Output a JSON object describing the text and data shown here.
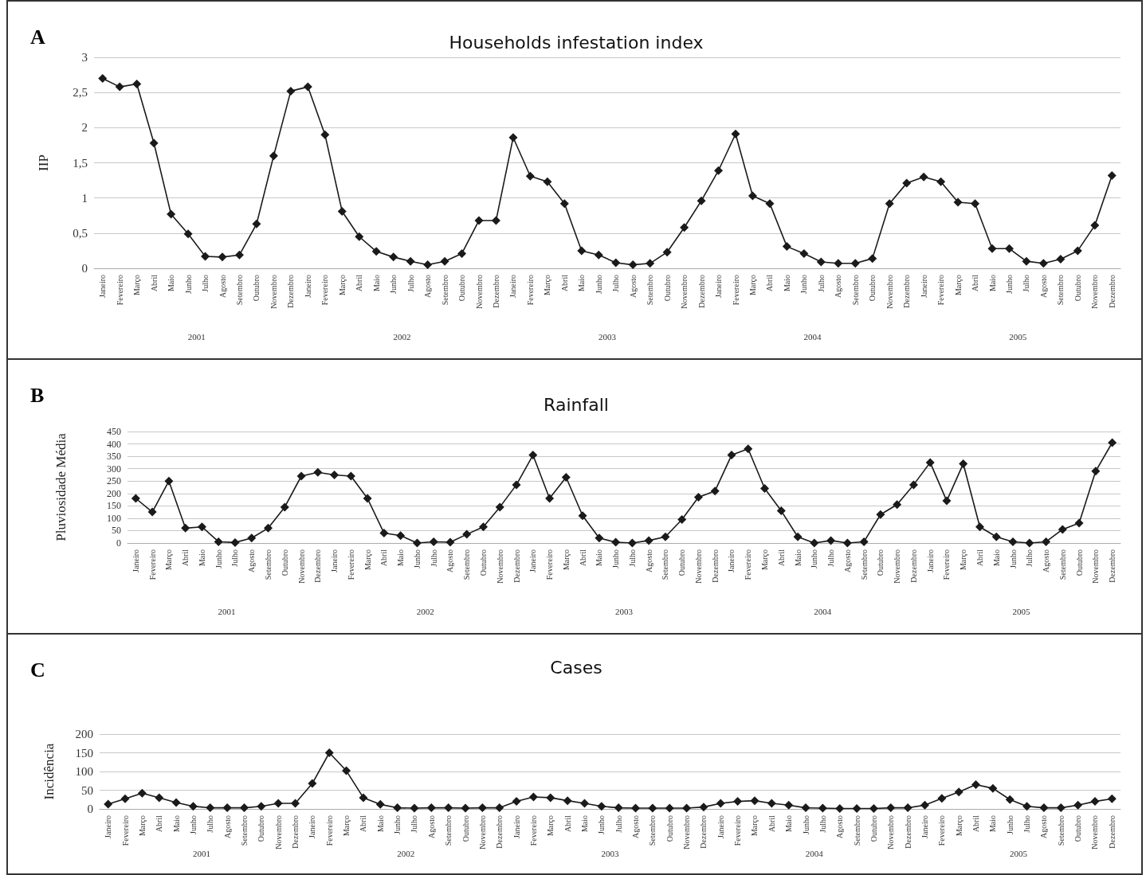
{
  "chart_data": [
    {
      "type": "line",
      "title": "Households infestation index",
      "ylabel": "IIP",
      "annotations": [
        "A",
        "2001",
        "2002",
        "2003",
        "2004",
        "2005"
      ],
      "categories": [
        "Janeiro",
        "Fevereiro",
        "Março",
        "Abril",
        "Maio",
        "Junho",
        "Julho",
        "Agosto",
        "Setembro",
        "Outubro",
        "Novembro",
        "Dezembro",
        "Janeiro",
        "Fevereiro",
        "Março",
        "Abril",
        "Maio",
        "Junho",
        "Julho",
        "Agosto",
        "Setembro",
        "Outubro",
        "Novembro",
        "Dezembro",
        "Janeiro",
        "Fevereiro",
        "Março",
        "Abril",
        "Maio",
        "Junho",
        "Julho",
        "Agosto",
        "Setembro",
        "Outubro",
        "Novembro",
        "Dezembro",
        "Janeiro",
        "Fevereiro",
        "Março",
        "Abril",
        "Maio",
        "Junho",
        "Julho",
        "Agosto",
        "Setembro",
        "Outubro",
        "Novembro",
        "Dezembro",
        "Janeiro",
        "Fevereiro",
        "Março",
        "Abril",
        "Maio",
        "Junho",
        "Julho",
        "Agosto",
        "Setembro",
        "Outubro",
        "Novembro",
        "Dezembro"
      ],
      "series": [
        {
          "color": "#1a1a1a",
          "values": [
            2.7,
            2.58,
            2.62,
            1.78,
            0.77,
            0.49,
            0.17,
            0.16,
            0.19,
            0.63,
            1.6,
            2.52,
            2.58,
            1.9,
            0.81,
            0.45,
            0.24,
            0.16,
            0.1,
            0.05,
            0.1,
            0.21,
            0.68,
            0.68,
            1.86,
            1.31,
            1.23,
            0.92,
            0.25,
            0.19,
            0.08,
            0.05,
            0.07,
            0.23,
            0.58,
            0.96,
            1.39,
            1.91,
            1.03,
            0.92,
            0.31,
            0.21,
            0.09,
            0.07,
            0.07,
            0.14,
            0.92,
            1.21,
            1.3,
            1.23,
            0.94,
            0.92,
            0.28,
            0.28,
            0.1,
            0.07,
            0.13,
            0.25,
            0.61,
            1.32
          ]
        }
      ],
      "ylim": [
        0,
        3
      ],
      "yticks": [
        0,
        {
          "value": 0.5,
          "label": "0,5"
        },
        1,
        {
          "value": 1.5,
          "label": "1,5"
        },
        2,
        {
          "value": 2.5,
          "label": "2,5"
        },
        3
      ],
      "grid": "y",
      "marker": "diamond",
      "line_style": "solid"
    },
    {
      "type": "line",
      "title": "Rainfall",
      "ylabel": "Pluviosidade Média",
      "annotations": [
        "B",
        "2001",
        "2002",
        "2003",
        "2004",
        "2005"
      ],
      "categories": [
        "Janeiro",
        "Fevereiro",
        "Março",
        "Abril",
        "Maio",
        "Junho",
        "Julho",
        "Agosto",
        "Setembro",
        "Outubro",
        "Novembro",
        "Dezembro",
        "Janeiro",
        "Fevereiro",
        "Março",
        "Abril",
        "Maio",
        "Junho",
        "Julho",
        "Agosto",
        "Setembro",
        "Outubro",
        "Novembro",
        "Dezembro",
        "Janeiro",
        "Fevereiro",
        "Março",
        "Abril",
        "Maio",
        "Junho",
        "Julho",
        "Agosto",
        "Setembro",
        "Outubro",
        "Novembro",
        "Dezembro",
        "Janeiro",
        "Fevereiro",
        "Março",
        "Abril",
        "Maio",
        "Junho",
        "Julho",
        "Agosto",
        "Setembro",
        "Outubro",
        "Novembro",
        "Dezembro",
        "Janeiro",
        "Fevereiro",
        "Março",
        "Abril",
        "Maio",
        "Junho",
        "Julho",
        "Agosto",
        "Setembro",
        "Outubro",
        "Novembro",
        "Dezembro"
      ],
      "series": [
        {
          "color": "#1a1a1a",
          "values": [
            180,
            125,
            250,
            60,
            65,
            5,
            2,
            20,
            60,
            145,
            270,
            285,
            275,
            270,
            180,
            40,
            30,
            0,
            5,
            3,
            35,
            65,
            145,
            235,
            355,
            180,
            265,
            110,
            20,
            3,
            0,
            10,
            25,
            95,
            185,
            210,
            355,
            380,
            220,
            130,
            25,
            0,
            10,
            0,
            5,
            115,
            155,
            235,
            325,
            170,
            320,
            65,
            25,
            5,
            0,
            5,
            55,
            80,
            290,
            405
          ]
        }
      ],
      "ylim": [
        0,
        450
      ],
      "yticks": [
        0,
        50,
        100,
        150,
        200,
        250,
        300,
        350,
        400,
        450
      ],
      "grid": "y",
      "marker": "diamond",
      "line_style": "solid"
    },
    {
      "type": "line",
      "title": "Cases",
      "ylabel": "Incidência",
      "annotations": [
        "C",
        "2001",
        "2002",
        "2003",
        "2004",
        "2005"
      ],
      "categories": [
        "Janeiro",
        "Fevereiro",
        "Março",
        "Abril",
        "Maio",
        "Junho",
        "Julho",
        "Agosto",
        "Setembro",
        "Outubro",
        "Novembro",
        "Dezembro",
        "Janeiro",
        "Fevereiro",
        "Março",
        "Abril",
        "Maio",
        "Junho",
        "Julho",
        "Agosto",
        "Setembro",
        "Outubro",
        "Novembro",
        "Dezembro",
        "Janeiro",
        "Fevereiro",
        "Março",
        "Abril",
        "Maio",
        "Junho",
        "Julho",
        "Agosto",
        "Setembro",
        "Outubro",
        "Novembro",
        "Dezembro",
        "Janeiro",
        "Fevereiro",
        "Março",
        "Abril",
        "Maio",
        "Junho",
        "Julho",
        "Agosto",
        "Setembro",
        "Outubro",
        "Novembro",
        "Dezembro",
        "Janeiro",
        "Fevereiro",
        "Março",
        "Abril",
        "Maio",
        "Junho",
        "Julho",
        "Agosto",
        "Setembro",
        "Outubro",
        "Novembro",
        "Dezembro"
      ],
      "series": [
        {
          "color": "#1a1a1a",
          "values": [
            13,
            27,
            42,
            30,
            17,
            7,
            3,
            3,
            3,
            7,
            15,
            15,
            68,
            150,
            102,
            30,
            12,
            3,
            2,
            3,
            3,
            2,
            3,
            3,
            20,
            32,
            30,
            22,
            15,
            7,
            3,
            2,
            2,
            2,
            2,
            5,
            15,
            20,
            22,
            15,
            10,
            3,
            2,
            1,
            1,
            1,
            3,
            3,
            10,
            28,
            45,
            65,
            55,
            25,
            7,
            3,
            3,
            10,
            20,
            27
          ]
        }
      ],
      "ylim": [
        0,
        200
      ],
      "yticks": [
        0,
        50,
        100,
        150,
        200
      ],
      "grid": "y",
      "marker": "diamond",
      "line_style": "solid"
    }
  ]
}
